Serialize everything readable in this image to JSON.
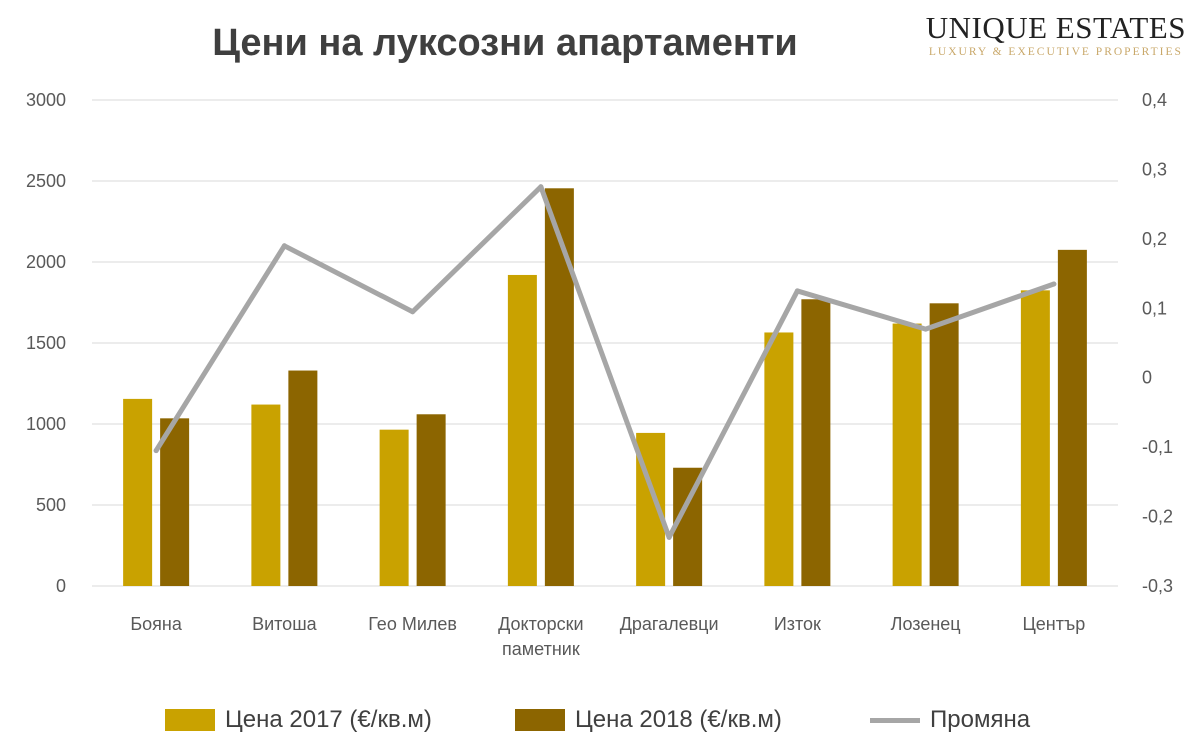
{
  "logo": {
    "main": "UNIQUE ESTATES",
    "sub": "LUXURY & EXECUTIVE PROPERTIES"
  },
  "chart_data": {
    "type": "bar",
    "title": "Цени на луксозни апартаменти",
    "categories": [
      [
        "Бояна"
      ],
      [
        "Витоша"
      ],
      [
        "Гео Милев"
      ],
      [
        "Докторски",
        "паметник"
      ],
      [
        "Драгалевци"
      ],
      [
        "Изток"
      ],
      [
        "Лозенец"
      ],
      [
        "Център"
      ]
    ],
    "series": [
      {
        "name": "Цена 2017 (€/кв.м)",
        "type": "bar",
        "axis": "left",
        "color": "#c9a200",
        "values": [
          1155,
          1120,
          965,
          1920,
          945,
          1565,
          1620,
          1825
        ]
      },
      {
        "name": "Цена 2018 (€/кв.м)",
        "type": "bar",
        "axis": "left",
        "color": "#8c6500",
        "values": [
          1035,
          1330,
          1060,
          2455,
          730,
          1770,
          1745,
          2075
        ]
      },
      {
        "name": "Промяна",
        "type": "line",
        "axis": "right",
        "color": "#a6a6a6",
        "values": [
          -0.105,
          0.19,
          0.095,
          0.275,
          -0.23,
          0.125,
          0.07,
          0.135
        ]
      }
    ],
    "y_left": {
      "min": 0,
      "max": 3000,
      "ticks": [
        "0",
        "500",
        "1000",
        "1500",
        "2000",
        "2500",
        "3000"
      ]
    },
    "y_right": {
      "min": -0.3,
      "max": 0.4,
      "ticks": [
        "-0,3",
        "-0,2",
        "-0,1",
        "0",
        "0,1",
        "0,2",
        "0,3",
        "0,4"
      ]
    },
    "grid": true,
    "legend_position": "bottom"
  }
}
